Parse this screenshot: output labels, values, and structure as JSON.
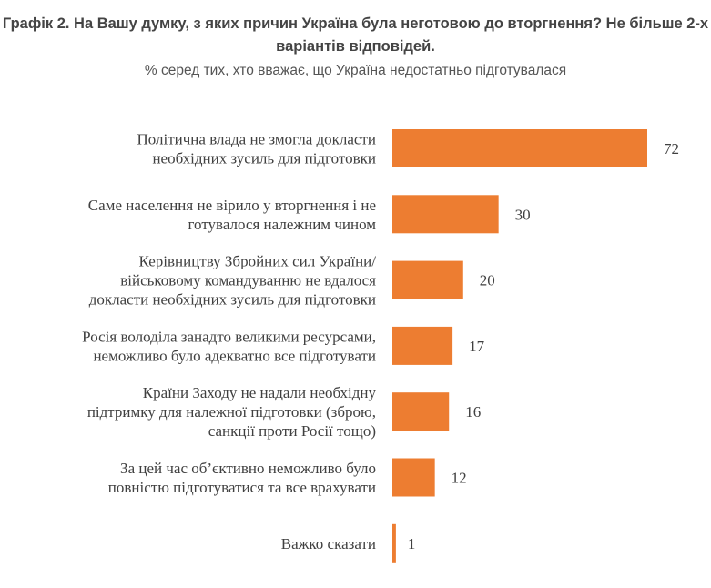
{
  "chart_data": {
    "type": "bar",
    "orientation": "horizontal",
    "title": "Графік 2. На Вашу думку, з яких причин Україна була неготовою до вторгнення? Не більше 2-х варіантів відповідей.",
    "subtitle": "% серед тих, хто вважає, що Україна недостатньо підготувалася",
    "categories": [
      [
        "Політична влада не змогла докласти",
        "необхідних зусиль для підготовки"
      ],
      [
        "Саме населення не вірило у вторгнення і не",
        "готувалося належним чином"
      ],
      [
        "Керівництву Збройних сил України/",
        "військовому командуванню не вдалося",
        "докласти необхідних зусиль для підготовки"
      ],
      [
        "Росія володіла занадто великими ресурсами,",
        "неможливо було адекватно все підготувати"
      ],
      [
        "Країни Заходу не надали необхідну",
        "підтримку для належної підготовки (зброю,",
        "санкції проти Росії тощо)"
      ],
      [
        "За цей час об’єктивно неможливо було",
        "повністю підготуватися та все врахувати"
      ],
      [
        "Важко сказати"
      ]
    ],
    "values": [
      72,
      30,
      20,
      17,
      16,
      12,
      1
    ],
    "data_labels": [
      "72",
      "30",
      "20",
      "17",
      "16",
      "12",
      "1"
    ],
    "grid": false,
    "axis_visible": false,
    "bar_color": "#ED7D31"
  }
}
